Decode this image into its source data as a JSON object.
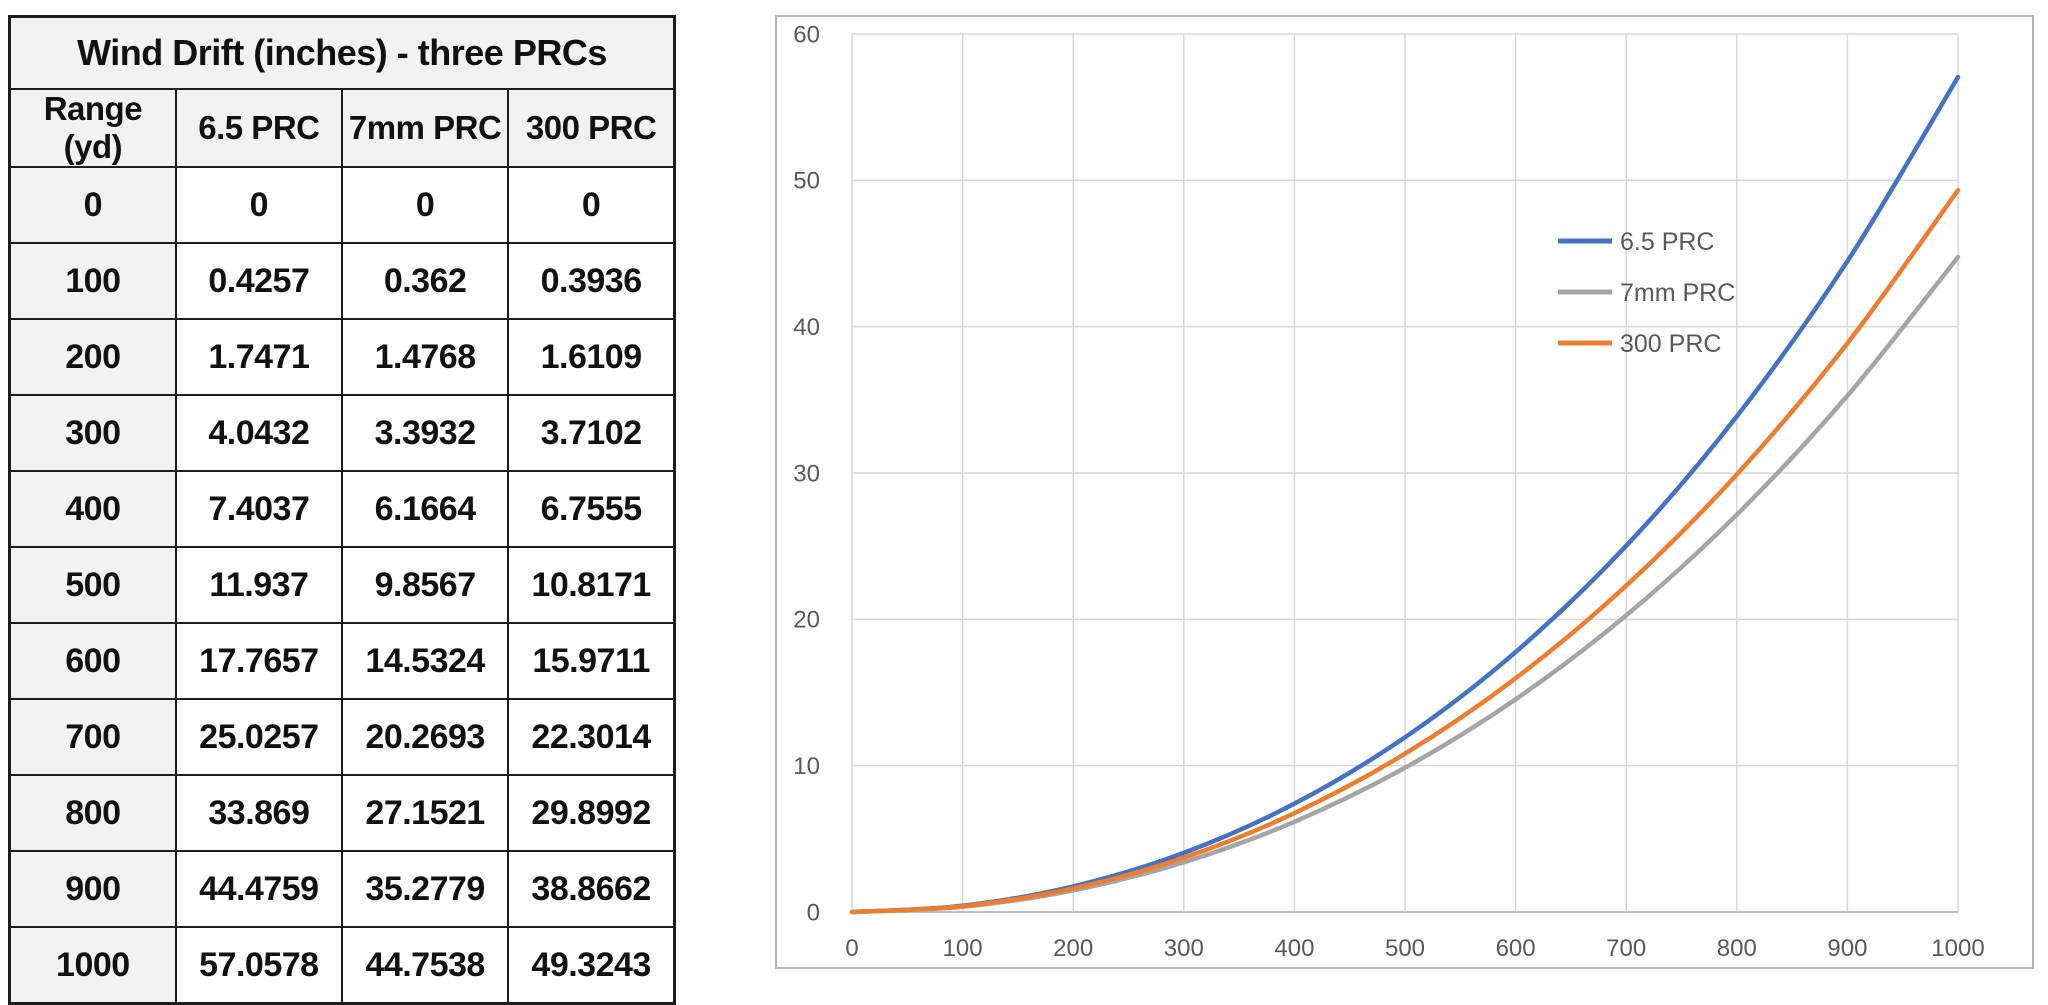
{
  "table": {
    "title": "Wind Drift (inches) - three PRCs",
    "columns": [
      "Range (yd)",
      "6.5 PRC",
      "7mm PRC",
      "300 PRC"
    ],
    "rows": [
      [
        "0",
        "0",
        "0",
        "0"
      ],
      [
        "100",
        "0.4257",
        "0.362",
        "0.3936"
      ],
      [
        "200",
        "1.7471",
        "1.4768",
        "1.6109"
      ],
      [
        "300",
        "4.0432",
        "3.3932",
        "3.7102"
      ],
      [
        "400",
        "7.4037",
        "6.1664",
        "6.7555"
      ],
      [
        "500",
        "11.937",
        "9.8567",
        "10.8171"
      ],
      [
        "600",
        "17.7657",
        "14.5324",
        "15.9711"
      ],
      [
        "700",
        "25.0257",
        "20.2693",
        "22.3014"
      ],
      [
        "800",
        "33.869",
        "27.1521",
        "29.8992"
      ],
      [
        "900",
        "44.4759",
        "35.2779",
        "38.8662"
      ],
      [
        "1000",
        "57.0578",
        "44.7538",
        "49.3243"
      ]
    ]
  },
  "chart_data": {
    "type": "line",
    "title": "",
    "xlabel": "",
    "ylabel": "",
    "x": [
      0,
      100,
      200,
      300,
      400,
      500,
      600,
      700,
      800,
      900,
      1000
    ],
    "series": [
      {
        "name": "6.5 PRC",
        "color": "#4472C4",
        "values": [
          0,
          0.4257,
          1.7471,
          4.0432,
          7.4037,
          11.937,
          17.7657,
          25.0257,
          33.869,
          44.4759,
          57.0578
        ]
      },
      {
        "name": "7mm PRC",
        "color": "#A5A5A5",
        "values": [
          0,
          0.362,
          1.4768,
          3.3932,
          6.1664,
          9.8567,
          14.5324,
          20.2693,
          27.1521,
          35.2779,
          44.7538
        ]
      },
      {
        "name": "300 PRC",
        "color": "#ED7D31",
        "values": [
          0,
          0.3936,
          1.6109,
          3.7102,
          6.7555,
          10.8171,
          15.9711,
          22.3014,
          29.8992,
          38.8662,
          49.3243
        ]
      }
    ],
    "xlim": [
      0,
      1000
    ],
    "ylim": [
      0,
      60
    ],
    "x_ticks": [
      0,
      100,
      200,
      300,
      400,
      500,
      600,
      700,
      800,
      900,
      1000
    ],
    "y_ticks": [
      0,
      10,
      20,
      30,
      40,
      50,
      60
    ],
    "grid": true,
    "legend_position": "inside-upper-right",
    "legend": [
      "6.5 PRC",
      "7mm PRC",
      "300 PRC"
    ]
  },
  "colors": {
    "grid": "#d9d9d9",
    "axis": "#bfbfbf",
    "tick_label": "#595959",
    "chart_border": "#b3b3b3",
    "table_border": "#1c1c1c",
    "table_shade_bg": "#f2f2f2",
    "table_text": "#111111"
  }
}
